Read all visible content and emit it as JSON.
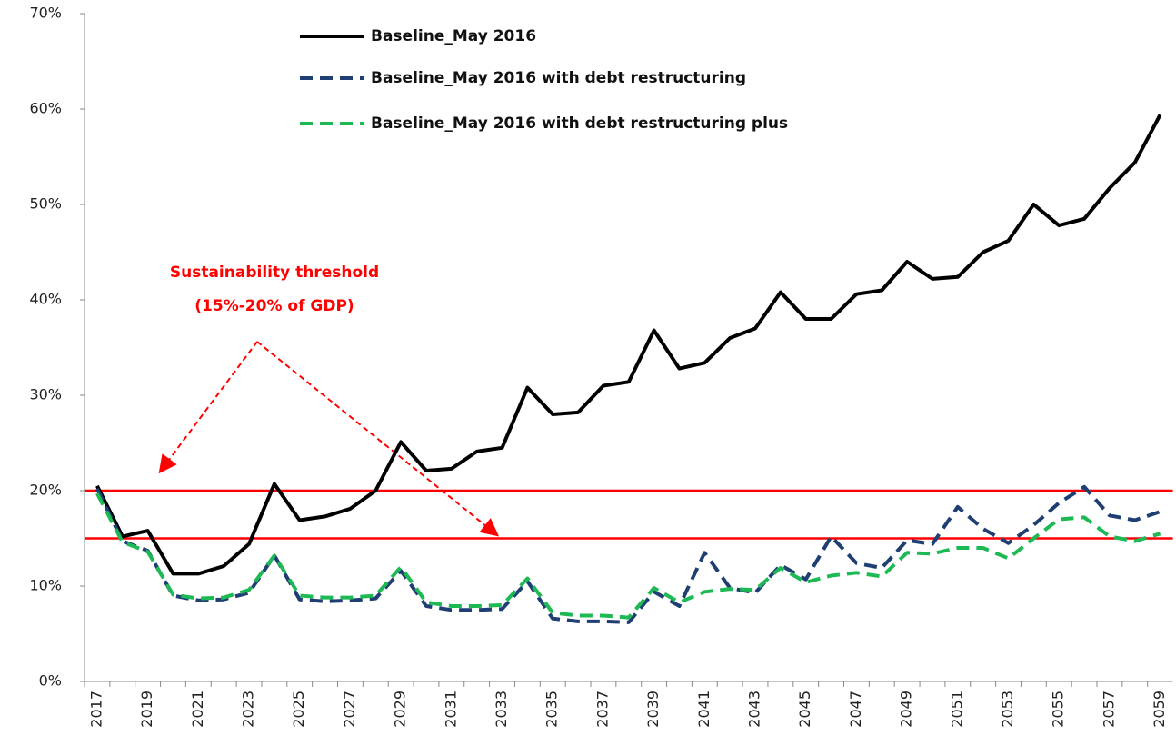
{
  "chart_data": {
    "type": "line",
    "categories": [
      "2017",
      null,
      "2019",
      null,
      "2021",
      null,
      "2023",
      null,
      "2025",
      null,
      "2027",
      null,
      "2029",
      null,
      "2031",
      null,
      "2033",
      null,
      "2035",
      null,
      "2037",
      null,
      "2039",
      null,
      "2041",
      null,
      "2043",
      null,
      "2045",
      null,
      "2047",
      null,
      "2049",
      null,
      "2051",
      null,
      "2053",
      null,
      "2055",
      null,
      "2057",
      null,
      "2059"
    ],
    "series": [
      {
        "name": "Baseline_May 2016",
        "color": "#000000",
        "dash": false,
        "values": [
          20.5,
          15.2,
          15.8,
          11.3,
          11.3,
          12.1,
          14.4,
          20.7,
          16.9,
          17.3,
          18.1,
          20.0,
          25.1,
          22.1,
          22.3,
          24.1,
          24.5,
          30.8,
          28.0,
          28.2,
          31.0,
          31.4,
          36.8,
          32.8,
          33.4,
          36.0,
          37.0,
          40.8,
          38.0,
          38.0,
          40.6,
          41.0,
          44.0,
          42.2,
          42.4,
          45.0,
          46.2,
          50.0,
          47.8,
          48.5,
          51.7,
          54.4,
          59.4
        ]
      },
      {
        "name": "Baseline_May 2016 with debt restructuring",
        "color": "#1f3f73",
        "dash": true,
        "values": [
          20.2,
          14.7,
          13.7,
          9.0,
          8.5,
          8.6,
          9.3,
          13.2,
          8.6,
          8.4,
          8.5,
          8.7,
          11.6,
          7.9,
          7.5,
          7.5,
          7.6,
          10.5,
          6.6,
          6.3,
          6.3,
          6.2,
          9.4,
          7.9,
          13.5,
          9.8,
          9.3,
          12.2,
          10.7,
          15.2,
          12.4,
          11.9,
          14.8,
          14.4,
          18.3,
          16.0,
          14.5,
          16.4,
          18.7,
          20.4,
          17.4,
          16.9,
          17.8
        ]
      },
      {
        "name": "Baseline_May 2016 with debt restructuring plus",
        "color": "#1db954",
        "dash": true,
        "values": [
          19.7,
          14.6,
          13.6,
          9.1,
          8.7,
          8.8,
          9.6,
          13.2,
          9.0,
          8.8,
          8.8,
          9.0,
          12.0,
          8.3,
          7.9,
          7.9,
          8.0,
          10.8,
          7.2,
          6.9,
          6.9,
          6.7,
          9.8,
          8.3,
          9.4,
          9.7,
          9.6,
          11.9,
          10.4,
          11.1,
          11.4,
          11.0,
          13.5,
          13.4,
          14.0,
          14.0,
          12.9,
          15.0,
          17.0,
          17.2,
          15.2,
          14.7,
          15.5
        ]
      }
    ],
    "ylim": [
      0,
      70
    ],
    "yticks": [
      {
        "value": 0,
        "label": "0%"
      },
      {
        "value": 10,
        "label": "10%"
      },
      {
        "value": 20,
        "label": "20%"
      },
      {
        "value": 30,
        "label": "30%"
      },
      {
        "value": 40,
        "label": "40%"
      },
      {
        "value": 50,
        "label": "50%"
      },
      {
        "value": 60,
        "label": "60%"
      },
      {
        "value": 70,
        "label": "70%"
      }
    ],
    "reference_lines": [
      15,
      20
    ],
    "reference_color": "#ff0000",
    "annotation": [
      "Sustainability  threshold",
      "(15%-20% of GDP)"
    ],
    "grid": false
  }
}
